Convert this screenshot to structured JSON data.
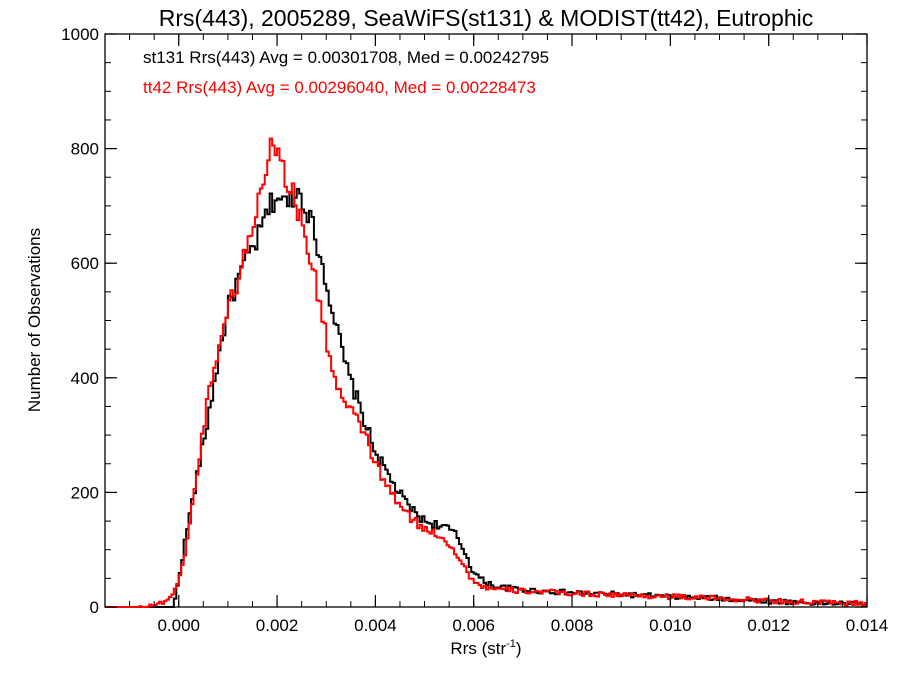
{
  "chart_data": {
    "type": "line",
    "title": "Rrs(443), 2005289, SeaWiFS(st131) & MODIST(tt42), Eutrophic",
    "xlabel": "Rrs (str",
    "xlabel_sup": "-1",
    "xlabel_end": ")",
    "ylabel": "Number of Observations",
    "xlim": [
      -0.0015,
      0.014
    ],
    "ylim": [
      0,
      1000
    ],
    "xticks": [
      "0.000",
      "0.002",
      "0.004",
      "0.006",
      "0.008",
      "0.010",
      "0.012",
      "0.014"
    ],
    "xtick_values": [
      0,
      0.002,
      0.004,
      0.006,
      0.008,
      0.01,
      0.012,
      0.014
    ],
    "yticks": [
      "0",
      "200",
      "400",
      "600",
      "800",
      "1000"
    ],
    "ytick_values": [
      0,
      200,
      400,
      600,
      800,
      1000
    ],
    "grid": false,
    "annotations": [
      {
        "text": "st131 Rrs(443) Avg = 0.00301708, Med = 0.00242795",
        "color": "#000000"
      },
      {
        "text": "tt42 Rrs(443) Avg = 0.00296040, Med = 0.00228473",
        "color": "#ff0000"
      }
    ],
    "series": [
      {
        "color": "#000000",
        "x": [
          -0.0015,
          -0.0001,
          0.0,
          0.0002,
          0.0004,
          0.0006,
          0.0008,
          0.001,
          0.0012,
          0.0014,
          0.0016,
          0.0018,
          0.002,
          0.0022,
          0.0024,
          0.0026,
          0.0028,
          0.003,
          0.0032,
          0.0034,
          0.0036,
          0.0038,
          0.004,
          0.0042,
          0.0044,
          0.0046,
          0.0048,
          0.005,
          0.0052,
          0.0054,
          0.0056,
          0.0058,
          0.006,
          0.0062,
          0.0065,
          0.007,
          0.0075,
          0.008,
          0.009,
          0.01,
          0.011,
          0.012,
          0.013,
          0.014
        ],
        "y": [
          0,
          0,
          50,
          150,
          240,
          330,
          430,
          520,
          570,
          610,
          640,
          690,
          720,
          700,
          730,
          700,
          640,
          570,
          490,
          420,
          370,
          320,
          270,
          240,
          210,
          185,
          165,
          150,
          145,
          140,
          130,
          100,
          60,
          45,
          35,
          30,
          27,
          25,
          22,
          18,
          15,
          10,
          7,
          5
        ]
      },
      {
        "color": "#ff0000",
        "x": [
          -0.0015,
          -0.0008,
          -0.0004,
          -0.0002,
          0.0,
          0.0002,
          0.0004,
          0.0006,
          0.0008,
          0.001,
          0.0012,
          0.0014,
          0.0016,
          0.0018,
          0.0019,
          0.002,
          0.0022,
          0.0024,
          0.0026,
          0.0028,
          0.003,
          0.0032,
          0.0034,
          0.0036,
          0.0038,
          0.004,
          0.0042,
          0.0044,
          0.0046,
          0.0048,
          0.005,
          0.0052,
          0.0054,
          0.0056,
          0.0058,
          0.006,
          0.0062,
          0.0065,
          0.007,
          0.0075,
          0.008,
          0.009,
          0.01,
          0.011,
          0.012,
          0.013,
          0.014
        ],
        "y": [
          0,
          0,
          5,
          15,
          40,
          130,
          250,
          370,
          450,
          520,
          570,
          630,
          700,
          780,
          835,
          790,
          750,
          700,
          640,
          560,
          470,
          390,
          350,
          330,
          300,
          250,
          215,
          190,
          165,
          150,
          135,
          130,
          120,
          100,
          70,
          45,
          35,
          30,
          28,
          26,
          24,
          21,
          18,
          15,
          11,
          8,
          6
        ]
      }
    ]
  }
}
